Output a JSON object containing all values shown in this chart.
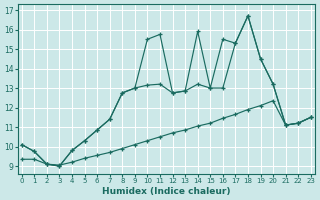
{
  "xlabel": "Humidex (Indice chaleur)",
  "bg_color": "#cce8e8",
  "line_color": "#1a6b60",
  "xlim": [
    -0.3,
    23.3
  ],
  "ylim": [
    8.6,
    17.3
  ],
  "xticks": [
    0,
    1,
    2,
    3,
    4,
    5,
    6,
    7,
    8,
    9,
    10,
    11,
    12,
    13,
    14,
    15,
    16,
    17,
    18,
    19,
    20,
    21,
    22,
    23
  ],
  "yticks": [
    9,
    10,
    11,
    12,
    13,
    14,
    15,
    16,
    17
  ],
  "line1_x": [
    0,
    1,
    2,
    3,
    4,
    5,
    6,
    7,
    8,
    9,
    10,
    11,
    12,
    13,
    14,
    15,
    16,
    17,
    18,
    19,
    20,
    21,
    22,
    23
  ],
  "line1_y": [
    10.1,
    9.75,
    9.1,
    9.0,
    9.8,
    10.3,
    10.85,
    11.4,
    12.75,
    13.0,
    15.5,
    15.75,
    12.75,
    12.85,
    15.9,
    13.0,
    15.5,
    15.3,
    16.7,
    14.5,
    13.2,
    11.1,
    11.2,
    11.5
  ],
  "line2_x": [
    0,
    1,
    2,
    3,
    4,
    5,
    6,
    7,
    8,
    9,
    10,
    11,
    12,
    13,
    14,
    15,
    16,
    17,
    18,
    19,
    20,
    21,
    22,
    23
  ],
  "line2_y": [
    10.1,
    9.75,
    9.1,
    9.0,
    9.8,
    10.3,
    10.85,
    11.4,
    12.75,
    13.0,
    13.15,
    13.2,
    12.75,
    12.85,
    13.2,
    13.0,
    13.0,
    15.3,
    16.7,
    14.5,
    13.2,
    11.1,
    11.2,
    11.5
  ],
  "line3_x": [
    0,
    1,
    2,
    3,
    4,
    5,
    6,
    7,
    8,
    9,
    10,
    11,
    12,
    13,
    14,
    15,
    16,
    17,
    18,
    19,
    20,
    21,
    22,
    23
  ],
  "line3_y": [
    9.35,
    9.35,
    9.1,
    9.05,
    9.2,
    9.4,
    9.55,
    9.7,
    9.9,
    10.1,
    10.3,
    10.5,
    10.7,
    10.85,
    11.05,
    11.2,
    11.45,
    11.65,
    11.9,
    12.1,
    12.35,
    11.1,
    11.2,
    11.5
  ]
}
